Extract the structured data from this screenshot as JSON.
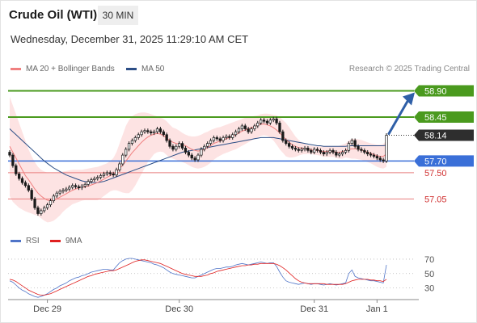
{
  "header": {
    "instrument": "Crude Oil (WTI)",
    "timeframe": "30 MIN",
    "datetime": "Wednesday, December 31, 2025 11:29:10 AM CET"
  },
  "legend_top": [
    {
      "label": "MA 20 + Bollinger Bands",
      "color": "#f08080"
    },
    {
      "label": "MA 50",
      "color": "#2c4e86"
    }
  ],
  "copyright": "Research © 2025 Trading Central",
  "legend_bottom": [
    {
      "label": "RSI",
      "color": "#4f74c8"
    },
    {
      "label": "9MA",
      "color": "#e02020"
    }
  ],
  "colors": {
    "green": "#4a9a1e",
    "blue": "#3a6fd8",
    "red": "#e87e7e",
    "arrow": "#2f5fa7",
    "current": "#333333"
  },
  "chart_data": {
    "type": "candlestick",
    "ylim": [
      56.6,
      59.1
    ],
    "levels": [
      {
        "value": 58.9,
        "label": "58.90",
        "kind": "resistance"
      },
      {
        "value": 58.45,
        "label": "58.45",
        "kind": "resistance"
      },
      {
        "value": 58.14,
        "label": "58.14",
        "kind": "current"
      },
      {
        "value": 57.7,
        "label": "57.70",
        "kind": "pivot"
      },
      {
        "value": 57.5,
        "label": "57.50",
        "kind": "support"
      },
      {
        "value": 57.05,
        "label": "57.05",
        "kind": "support"
      }
    ],
    "x_ticks": [
      "Dec 29",
      "Dec 30",
      "Dec 31",
      "Jan 1"
    ],
    "closes": [
      57.8,
      57.62,
      57.48,
      57.4,
      57.33,
      57.28,
      57.2,
      57.05,
      56.9,
      56.8,
      56.85,
      56.9,
      56.95,
      57.02,
      57.1,
      57.15,
      57.18,
      57.2,
      57.22,
      57.25,
      57.28,
      57.26,
      57.24,
      57.27,
      57.3,
      57.35,
      57.38,
      57.4,
      57.42,
      57.45,
      57.48,
      57.5,
      57.48,
      57.46,
      57.55,
      57.65,
      57.8,
      57.9,
      58.0,
      58.05,
      58.1,
      58.15,
      58.2,
      58.22,
      58.2,
      58.18,
      58.2,
      58.25,
      58.2,
      58.15,
      58.05,
      57.95,
      57.9,
      57.95,
      58.0,
      57.92,
      57.85,
      57.8,
      57.75,
      57.72,
      57.8,
      57.9,
      57.95,
      58.0,
      58.05,
      58.1,
      58.08,
      58.05,
      58.1,
      58.12,
      58.1,
      58.15,
      58.2,
      58.25,
      58.3,
      58.25,
      58.2,
      58.25,
      58.3,
      58.35,
      58.4,
      58.38,
      58.35,
      58.4,
      58.42,
      58.35,
      58.2,
      58.05,
      58.0,
      57.95,
      57.92,
      57.9,
      57.88,
      57.9,
      57.92,
      57.88,
      57.85,
      57.9,
      57.88,
      57.85,
      57.82,
      57.85,
      57.88,
      57.85,
      57.8,
      57.82,
      57.85,
      57.88,
      58.0,
      58.05,
      57.95,
      57.9,
      57.88,
      57.85,
      57.82,
      57.8,
      57.78,
      57.75,
      57.72,
      57.7,
      58.14
    ],
    "ma20": [
      57.95,
      57.85,
      57.75,
      57.65,
      57.55,
      57.45,
      57.38,
      57.3,
      57.22,
      57.15,
      57.1,
      57.06,
      57.03,
      57.02,
      57.03,
      57.05,
      57.08,
      57.11,
      57.14,
      57.17,
      57.2,
      57.22,
      57.24,
      57.25,
      57.26,
      57.27,
      57.29,
      57.31,
      57.33,
      57.36,
      57.39,
      57.42,
      57.45,
      57.48,
      57.52,
      57.57,
      57.63,
      57.7,
      57.77,
      57.84,
      57.9,
      57.96,
      58.02,
      58.07,
      58.11,
      58.14,
      58.16,
      58.17,
      58.16,
      58.13,
      58.09,
      58.05,
      58.02,
      58.0,
      57.99,
      57.98,
      57.96,
      57.93,
      57.9,
      57.88,
      57.87,
      57.88,
      57.9,
      57.93,
      57.96,
      58.0,
      58.02,
      58.04,
      58.06,
      58.08,
      58.1,
      58.12,
      58.15,
      58.18,
      58.21,
      58.23,
      58.25,
      58.27,
      58.29,
      58.31,
      58.33,
      58.33,
      58.32,
      58.3,
      58.27,
      58.23,
      58.18,
      58.12,
      58.07,
      58.02,
      57.98,
      57.95,
      57.93,
      57.92,
      57.91,
      57.9,
      57.89,
      57.88,
      57.88,
      57.87,
      57.86,
      57.86,
      57.86,
      57.86,
      57.85,
      57.85,
      57.86,
      57.88,
      57.9,
      57.91,
      57.91,
      57.9,
      57.89,
      57.87,
      57.85,
      57.83,
      57.81,
      57.79,
      57.78,
      57.78,
      57.82
    ],
    "ma50": [
      58.25,
      58.2,
      58.15,
      58.1,
      58.05,
      58.0,
      57.95,
      57.9,
      57.85,
      57.8,
      57.75,
      57.7,
      57.66,
      57.62,
      57.58,
      57.55,
      57.52,
      57.49,
      57.46,
      57.44,
      57.42,
      57.4,
      57.38,
      57.36,
      57.35,
      57.34,
      57.33,
      57.33,
      57.33,
      57.34,
      57.35,
      57.37,
      57.39,
      57.41,
      57.43,
      57.45,
      57.47,
      57.49,
      57.51,
      57.53,
      57.55,
      57.57,
      57.59,
      57.61,
      57.63,
      57.65,
      57.67,
      57.69,
      57.71,
      57.73,
      57.75,
      57.77,
      57.79,
      57.81,
      57.83,
      57.85,
      57.86,
      57.87,
      57.88,
      57.89,
      57.9,
      57.91,
      57.92,
      57.93,
      57.94,
      57.95,
      57.96,
      57.97,
      57.98,
      57.99,
      58.0,
      58.01,
      58.02,
      58.03,
      58.04,
      58.05,
      58.06,
      58.07,
      58.08,
      58.09,
      58.1,
      58.1,
      58.1,
      58.1,
      58.1,
      58.09,
      58.08,
      58.07,
      58.06,
      58.05,
      58.04,
      58.03,
      58.02,
      58.01,
      58.0,
      57.99,
      57.98,
      57.97,
      57.96,
      57.96,
      57.95,
      57.95,
      57.95,
      57.95,
      57.95,
      57.95,
      57.95,
      57.95,
      57.96,
      57.96,
      57.96,
      57.96,
      57.96,
      57.96,
      57.96,
      57.96,
      57.96,
      57.96,
      57.96,
      57.96,
      57.97
    ],
    "bb_upper": [
      58.8,
      58.65,
      58.5,
      58.35,
      58.2,
      58.05,
      57.9,
      57.78,
      57.68,
      57.6,
      57.55,
      57.52,
      57.5,
      57.49,
      57.5,
      57.5,
      57.51,
      57.52,
      57.53,
      57.54,
      57.55,
      57.55,
      57.55,
      57.55,
      57.56,
      57.57,
      57.58,
      57.59,
      57.6,
      57.62,
      57.64,
      57.66,
      57.7,
      57.75,
      57.85,
      58.0,
      58.15,
      58.3,
      58.4,
      58.46,
      58.5,
      58.52,
      58.53,
      58.53,
      58.52,
      58.5,
      58.48,
      58.46,
      58.44,
      58.42,
      58.38,
      58.32,
      58.27,
      58.25,
      58.22,
      58.18,
      58.15,
      58.13,
      58.12,
      58.12,
      58.13,
      58.15,
      58.18,
      58.2,
      58.23,
      58.25,
      58.27,
      58.28,
      58.3,
      58.32,
      58.34,
      58.36,
      58.38,
      58.4,
      58.42,
      58.44,
      58.45,
      58.46,
      58.47,
      58.48,
      58.5,
      58.51,
      58.51,
      58.5,
      58.49,
      58.48,
      58.45,
      58.4,
      58.35,
      58.28,
      58.2,
      58.12,
      58.06,
      58.02,
      57.99,
      57.97,
      57.96,
      57.95,
      57.95,
      57.95,
      57.95,
      57.95,
      57.95,
      57.95,
      57.95,
      57.96,
      57.98,
      58.0,
      58.05,
      58.08,
      58.08,
      58.07,
      58.06,
      58.04,
      58.02,
      58.0,
      57.99,
      57.98,
      57.98,
      57.99,
      58.05
    ],
    "bb_lower": [
      57.1,
      57.0,
      56.95,
      56.9,
      56.87,
      56.84,
      56.82,
      56.8,
      56.78,
      56.76,
      56.72,
      56.68,
      56.65,
      56.66,
      56.68,
      56.72,
      56.77,
      56.83,
      56.88,
      56.92,
      56.96,
      56.98,
      57.0,
      57.02,
      57.03,
      57.03,
      57.03,
      57.03,
      57.03,
      57.06,
      57.1,
      57.14,
      57.18,
      57.2,
      57.2,
      57.18,
      57.16,
      57.15,
      57.15,
      57.2,
      57.28,
      57.38,
      57.48,
      57.58,
      57.68,
      57.75,
      57.82,
      57.85,
      57.86,
      57.85,
      57.8,
      57.76,
      57.74,
      57.72,
      57.7,
      57.68,
      57.66,
      57.63,
      57.6,
      57.58,
      57.57,
      57.58,
      57.6,
      57.63,
      57.67,
      57.72,
      57.76,
      57.79,
      57.82,
      57.84,
      57.86,
      57.88,
      57.9,
      57.93,
      57.96,
      57.99,
      58.02,
      58.05,
      58.08,
      58.1,
      58.13,
      58.14,
      58.13,
      58.1,
      58.05,
      57.98,
      57.9,
      57.84,
      57.78,
      57.76,
      57.76,
      57.77,
      57.79,
      57.81,
      57.82,
      57.82,
      57.82,
      57.81,
      57.8,
      57.79,
      57.77,
      57.77,
      57.77,
      57.77,
      57.75,
      57.74,
      57.74,
      57.76,
      57.75,
      57.74,
      57.74,
      57.73,
      57.72,
      57.7,
      57.68,
      57.66,
      57.63,
      57.6,
      57.58,
      57.57,
      57.6
    ],
    "rsi": {
      "levels": [
        30,
        50,
        70
      ],
      "ylim": [
        15,
        80
      ],
      "values": [
        40,
        38,
        34,
        30,
        27,
        25,
        22,
        20,
        18,
        17,
        18,
        20,
        22,
        25,
        28,
        30,
        33,
        35,
        37,
        40,
        42,
        44,
        45,
        47,
        48,
        50,
        52,
        53,
        54,
        55,
        56,
        56,
        55,
        55,
        60,
        65,
        68,
        70,
        71,
        71,
        70,
        69,
        68,
        67,
        66,
        65,
        63,
        62,
        60,
        58,
        55,
        52,
        50,
        49,
        48,
        47,
        46,
        45,
        44,
        44,
        46,
        48,
        50,
        52,
        54,
        56,
        57,
        57,
        58,
        59,
        59,
        60,
        62,
        63,
        64,
        63,
        62,
        63,
        64,
        65,
        66,
        65,
        64,
        65,
        65,
        60,
        52,
        45,
        40,
        38,
        37,
        36,
        35,
        36,
        37,
        36,
        35,
        36,
        36,
        35,
        34,
        35,
        36,
        35,
        34,
        35,
        36,
        37,
        50,
        55,
        46,
        44,
        43,
        42,
        41,
        40,
        40,
        39,
        38,
        37,
        62
      ],
      "ma9": [
        42,
        41,
        39,
        36,
        33,
        30,
        27,
        25,
        23,
        21,
        20,
        20,
        21,
        22,
        24,
        26,
        28,
        30,
        32,
        34,
        36,
        38,
        40,
        42,
        44,
        46,
        47,
        49,
        50,
        51,
        52,
        53,
        54,
        54,
        55,
        57,
        59,
        61,
        63,
        65,
        67,
        68,
        69,
        69,
        68,
        67,
        66,
        65,
        64,
        62,
        60,
        58,
        56,
        54,
        52,
        50,
        49,
        48,
        47,
        46,
        46,
        46,
        47,
        48,
        50,
        51,
        53,
        54,
        55,
        56,
        57,
        58,
        59,
        60,
        61,
        61,
        62,
        62,
        63,
        63,
        64,
        64,
        64,
        64,
        64,
        63,
        61,
        58,
        55,
        51,
        47,
        43,
        40,
        38,
        37,
        36,
        36,
        36,
        36,
        36,
        36,
        35,
        35,
        35,
        35,
        35,
        35,
        36,
        38,
        40,
        41,
        42,
        42,
        42,
        42,
        41,
        41,
        40,
        40,
        39,
        42
      ]
    }
  }
}
